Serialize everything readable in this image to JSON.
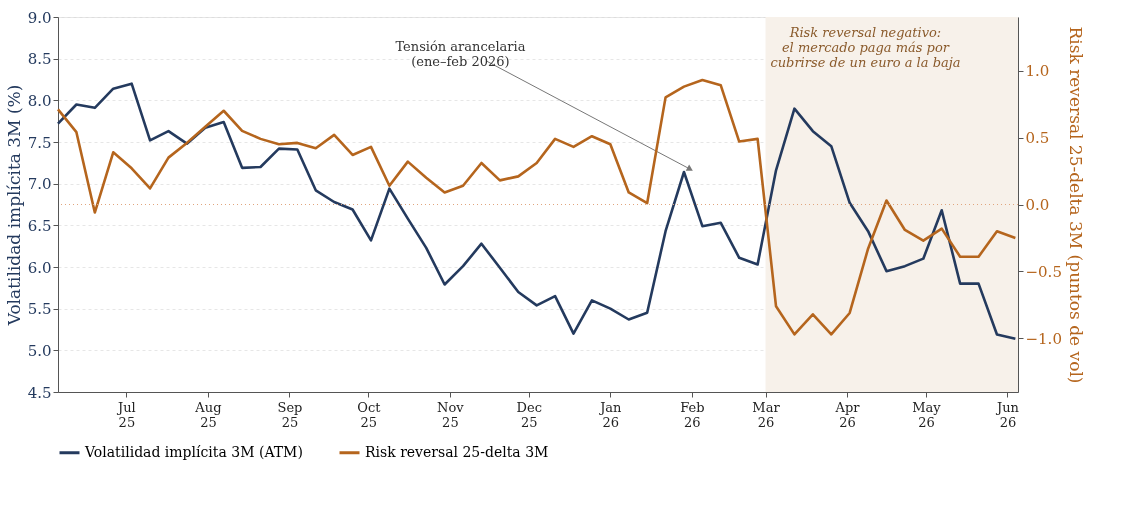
{
  "chart_data": {
    "type": "line",
    "ylabel": "Volatilidad implícita 3M (%)",
    "y2label": "Risk reversal 25-delta 3M (puntos de vol)",
    "x": [
      "2025-06-05",
      "2025-06-12",
      "2025-06-19",
      "2025-06-26",
      "2025-07-03",
      "2025-07-10",
      "2025-07-17",
      "2025-07-24",
      "2025-07-31",
      "2025-08-07",
      "2025-08-14",
      "2025-08-21",
      "2025-08-28",
      "2025-09-04",
      "2025-09-11",
      "2025-09-18",
      "2025-09-25",
      "2025-10-02",
      "2025-10-09",
      "2025-10-16",
      "2025-10-23",
      "2025-10-30",
      "2025-11-06",
      "2025-11-13",
      "2025-11-20",
      "2025-11-27",
      "2025-12-04",
      "2025-12-11",
      "2025-12-18",
      "2025-12-25",
      "2026-01-01",
      "2026-01-08",
      "2026-01-15",
      "2026-01-22",
      "2026-01-29",
      "2026-02-05",
      "2026-02-12",
      "2026-02-19",
      "2026-02-26",
      "2026-03-05",
      "2026-03-12",
      "2026-03-19",
      "2026-03-26",
      "2026-04-02",
      "2026-04-09",
      "2026-04-16",
      "2026-04-23",
      "2026-04-30",
      "2026-05-07",
      "2026-05-14",
      "2026-05-21",
      "2026-05-28",
      "2026-06-04"
    ],
    "series": [
      {
        "name": "Volatilidad implícita 3M (ATM)",
        "color": "#243a5e",
        "values": [
          7.72,
          7.95,
          7.91,
          8.14,
          8.2,
          7.52,
          7.63,
          7.48,
          7.67,
          7.74,
          7.19,
          7.2,
          7.42,
          7.41,
          6.92,
          6.78,
          6.69,
          6.32,
          6.94,
          6.58,
          6.23,
          5.79,
          6.01,
          6.28,
          5.99,
          5.7,
          5.54,
          5.65,
          5.2,
          5.6,
          5.5,
          5.37,
          5.45,
          6.43,
          7.14,
          6.49,
          6.53,
          6.11,
          6.03,
          7.16,
          7.9,
          7.63,
          7.45,
          6.77,
          6.43,
          5.95,
          6.01,
          6.1,
          6.68,
          5.8,
          5.8,
          5.19,
          5.14
        ]
      },
      {
        "name": "Risk reversal 25-delta 3M",
        "color": "#b5651d",
        "axis": "y2",
        "values": [
          0.71,
          0.54,
          -0.06,
          0.39,
          0.27,
          0.12,
          0.35,
          0.46,
          0.58,
          0.7,
          0.55,
          0.49,
          0.45,
          0.46,
          0.42,
          0.52,
          0.37,
          0.43,
          0.14,
          0.32,
          0.2,
          0.09,
          0.14,
          0.31,
          0.18,
          0.21,
          0.31,
          0.49,
          0.43,
          0.51,
          0.45,
          0.09,
          0.01,
          0.8,
          0.88,
          0.93,
          0.89,
          0.47,
          0.49,
          -0.76,
          -0.97,
          -0.82,
          -0.97,
          -0.81,
          -0.33,
          0.03,
          -0.19,
          -0.27,
          -0.18,
          -0.39,
          -0.39,
          -0.2,
          -0.25
        ]
      }
    ],
    "xlim": [
      "2025-06-05",
      "2026-06-05"
    ],
    "xticks": [
      {
        "value": "2025-07-01",
        "label": "Jul\n25"
      },
      {
        "value": "2025-08-01",
        "label": "Aug\n25"
      },
      {
        "value": "2025-09-01",
        "label": "Sep\n25"
      },
      {
        "value": "2025-10-01",
        "label": "Oct\n25"
      },
      {
        "value": "2025-11-01",
        "label": "Nov\n25"
      },
      {
        "value": "2025-12-01",
        "label": "Dec\n25"
      },
      {
        "value": "2026-01-01",
        "label": "Jan\n26"
      },
      {
        "value": "2026-02-01",
        "label": "Feb\n26"
      },
      {
        "value": "2026-03-01",
        "label": "Mar\n26"
      },
      {
        "value": "2026-04-01",
        "label": "Apr\n26"
      },
      {
        "value": "2026-05-01",
        "label": "May\n26"
      },
      {
        "value": "2026-06-01",
        "label": "Jun\n26"
      }
    ],
    "ylim": [
      4.5,
      9.0
    ],
    "yticks": [
      {
        "value": 4.5,
        "label": "4.5"
      },
      {
        "value": 5,
        "label": "5.0"
      },
      {
        "value": 5.5,
        "label": "5.5"
      },
      {
        "value": 6,
        "label": "6.0"
      },
      {
        "value": 6.5,
        "label": "6.5"
      },
      {
        "value": 7,
        "label": "7.0"
      },
      {
        "value": 7.5,
        "label": "7.5"
      },
      {
        "value": 8,
        "label": "8.0"
      },
      {
        "value": 8.5,
        "label": "8.5"
      },
      {
        "value": 9,
        "label": "9.0"
      }
    ],
    "y2lim": [
      -1.4,
      1.4
    ],
    "y2ticks": [
      {
        "value": -1,
        "label": "−1.0"
      },
      {
        "value": -0.5,
        "label": "−0.5"
      },
      {
        "value": 0,
        "label": "0.0"
      },
      {
        "value": 0.5,
        "label": "0.5"
      },
      {
        "value": 1,
        "label": "1.0"
      }
    ],
    "grid": "y",
    "legend": "bottom",
    "ref_lines": [
      {
        "axis": "y2",
        "value": 0,
        "color": "#e0a57e",
        "line_style": "dotted"
      }
    ],
    "bands": [
      {
        "axis": "x",
        "from": "2026-03-01",
        "to": "2026-06-05",
        "label": "Risk reversal negativo:\nel mercado paga más por\ncubrirse de un euro a la baja",
        "color": "#f7f1ea"
      }
    ],
    "annotations": [
      {
        "text": "Tensión arancelaria\n(ene–feb 2026)",
        "x": "2026-01-31",
        "y": 7.18
      }
    ]
  }
}
